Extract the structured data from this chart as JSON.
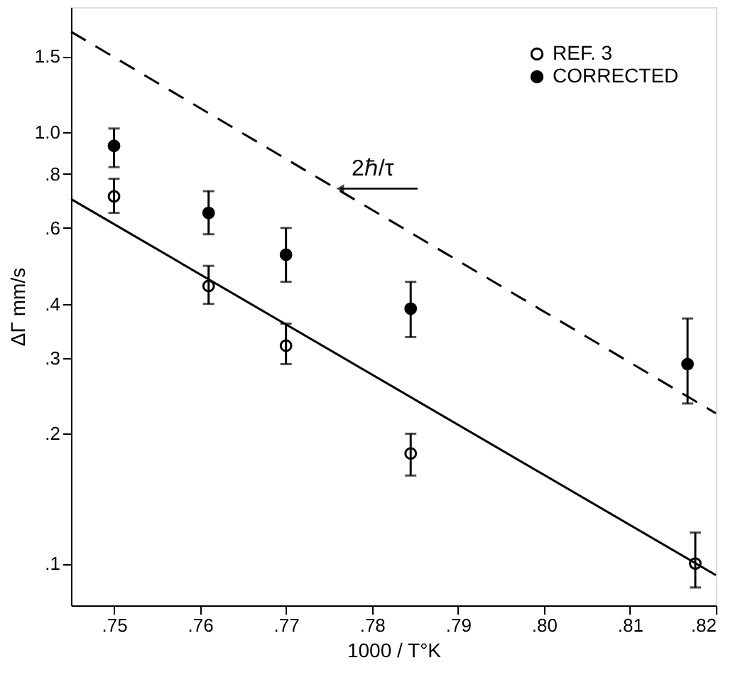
{
  "chart_data": {
    "type": "scatter",
    "xlabel": "1000 / T°K",
    "ylabel": "ΔΓ mm/s",
    "xlim": [
      0.745,
      0.82
    ],
    "ylim": [
      0.08,
      1.95
    ],
    "log": "y",
    "grid": false,
    "legend": "top right",
    "xticks": [
      {
        "value": 0.75,
        "label": ".75"
      },
      {
        "value": 0.76,
        "label": ".76"
      },
      {
        "value": 0.77,
        "label": ".77"
      },
      {
        "value": 0.78,
        "label": ".78"
      },
      {
        "value": 0.79,
        "label": ".79"
      },
      {
        "value": 0.8,
        "label": ".80"
      },
      {
        "value": 0.81,
        "label": ".81"
      },
      {
        "value": 0.82,
        "label": ".82"
      }
    ],
    "yticks": [
      {
        "value": 0.1,
        "label": ".1"
      },
      {
        "value": 0.2,
        "label": ".2"
      },
      {
        "value": 0.3,
        "label": ".3"
      },
      {
        "value": 0.4,
        "label": ".4"
      },
      {
        "value": 0.6,
        "label": ".6"
      },
      {
        "value": 0.8,
        "label": ".8"
      },
      {
        "value": 1,
        "label": "1.0"
      },
      1.5
    ],
    "series": [
      {
        "name": "REF. 3",
        "marker": "circle",
        "color": "#ffffff",
        "x": [
          0.75,
          0.761,
          0.77,
          0.7845,
          0.8176
        ],
        "values": [
          0.71,
          0.44,
          0.32,
          0.18,
          0.1
        ],
        "errors": [
          [
            0.65,
            0.78
          ],
          [
            0.4,
            0.49
          ],
          [
            0.29,
            0.36
          ],
          [
            0.16,
            0.2
          ],
          [
            0.088,
            0.118
          ]
        ]
      },
      {
        "name": "CORRECTED",
        "marker": "circle",
        "color": "#000000",
        "x": [
          0.75,
          0.761,
          0.77,
          0.7845,
          0.8167
        ],
        "values": [
          0.93,
          0.65,
          0.52,
          0.39,
          0.29
        ],
        "errors": [
          [
            0.83,
            1.02
          ],
          [
            0.58,
            0.73
          ],
          [
            0.45,
            0.6
          ],
          [
            0.335,
            0.45
          ],
          [
            0.235,
            0.37
          ]
        ]
      },
      {
        "type": "line",
        "marker": "none",
        "color": "#000000",
        "line_style": "solid",
        "x": [
          0.745,
          0.82
        ],
        "values": [
          0.7,
          0.094
        ]
      },
      {
        "type": "line",
        "marker": "none",
        "color": "#000000",
        "line_style": "dashed",
        "x": [
          0.745,
          0.82
        ],
        "values": [
          1.71,
          0.223
        ]
      }
    ],
    "annotations": [
      {
        "text": "2ℏ/τ",
        "x": 0.7763,
        "y": 0.74
      }
    ]
  }
}
